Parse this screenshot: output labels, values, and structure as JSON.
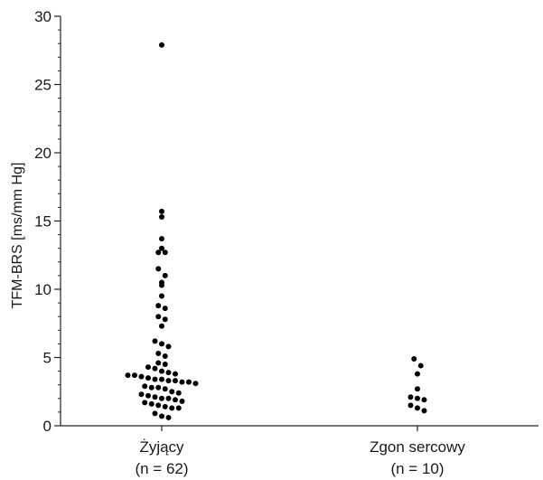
{
  "chart_data": {
    "type": "scatter",
    "title": "",
    "xlabel": "",
    "ylabel": "TFM-BRS [ms/mm Hg]",
    "ylim": [
      0,
      30
    ],
    "yticks": [
      0,
      5,
      10,
      15,
      20,
      25,
      30
    ],
    "y_minor_step": 1,
    "grid": false,
    "legend": "none",
    "point_color": "#000000",
    "categories": [
      {
        "label_line1": "Żyjący",
        "label_line2": "(n = 62)"
      },
      {
        "label_line1": "Zgon sercowy",
        "label_line2": "(n = 10)"
      }
    ],
    "series": [
      {
        "values": [
          27.9,
          15.7,
          15.3,
          13.7,
          13.0,
          12.7,
          12.7,
          11.5,
          11.0,
          10.5,
          10.3,
          9.5,
          8.8,
          8.6,
          8.0,
          7.8,
          7.3,
          6.2,
          6.0,
          5.8,
          5.3,
          5.1,
          4.6,
          4.5,
          4.3,
          4.2,
          4.0,
          3.9,
          3.8,
          3.7,
          3.7,
          3.6,
          3.5,
          3.4,
          3.4,
          3.3,
          3.3,
          3.2,
          3.2,
          3.1,
          2.9,
          2.8,
          2.8,
          2.7,
          2.5,
          2.4,
          2.3,
          2.2,
          2.1,
          2.0,
          2.0,
          1.9,
          1.8,
          1.7,
          1.6,
          1.5,
          1.4,
          1.3,
          1.3,
          0.9,
          0.7,
          0.6
        ]
      },
      {
        "values": [
          4.9,
          4.4,
          3.8,
          2.7,
          2.1,
          2.0,
          1.9,
          1.5,
          1.3,
          1.1
        ]
      }
    ]
  }
}
